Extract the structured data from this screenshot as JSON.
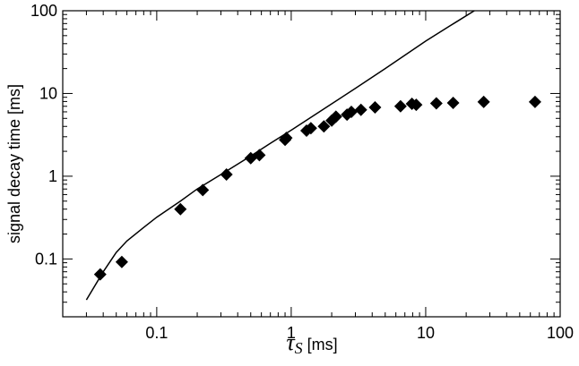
{
  "chart_data": {
    "type": "scatter",
    "xscale": "log",
    "yscale": "log",
    "xlim": [
      0.02,
      100
    ],
    "ylim": [
      0.02,
      100
    ],
    "xticks": [
      {
        "value": 0.1,
        "label": "0.1"
      },
      {
        "value": 1,
        "label": "1"
      },
      {
        "value": 10,
        "label": "10"
      },
      {
        "value": 100,
        "label": "100"
      }
    ],
    "yticks": [
      {
        "value": 0.1,
        "label": "0.1"
      },
      {
        "value": 1,
        "label": "1"
      },
      {
        "value": 10,
        "label": "10"
      },
      {
        "value": 100,
        "label": "100"
      }
    ],
    "xlabel": {
      "symbol": "τ",
      "subscript": "S",
      "unit": " [ms]"
    },
    "ylabel": "signal decay time [ms]",
    "grid": false,
    "series": [
      {
        "type": "scatter",
        "marker": "diamond",
        "color": "#000000",
        "x": [
          0.038,
          0.055,
          0.15,
          0.22,
          0.33,
          0.5,
          0.58,
          0.9,
          0.92,
          1.3,
          1.4,
          1.75,
          2.0,
          2.15,
          2.6,
          2.8,
          3.3,
          4.2,
          6.5,
          7.9,
          8.5,
          12,
          16,
          27,
          65
        ],
        "y": [
          0.065,
          0.092,
          0.4,
          0.68,
          1.05,
          1.65,
          1.8,
          2.75,
          2.9,
          3.55,
          3.8,
          4.0,
          4.7,
          5.25,
          5.55,
          6.0,
          6.35,
          6.8,
          7.0,
          7.5,
          7.3,
          7.6,
          7.7,
          7.9,
          7.9
        ]
      },
      {
        "type": "line",
        "color": "#000000",
        "x": [
          0.03,
          0.04,
          0.05,
          0.06,
          0.08,
          0.1,
          0.15,
          0.2,
          0.3,
          0.5,
          0.7,
          1,
          2,
          3,
          5,
          10,
          15,
          23
        ],
        "y": [
          0.032,
          0.07,
          0.12,
          0.165,
          0.24,
          0.32,
          0.5,
          0.7,
          1.05,
          1.75,
          2.5,
          3.6,
          7.5,
          11.5,
          20,
          43,
          65,
          100
        ]
      }
    ]
  }
}
